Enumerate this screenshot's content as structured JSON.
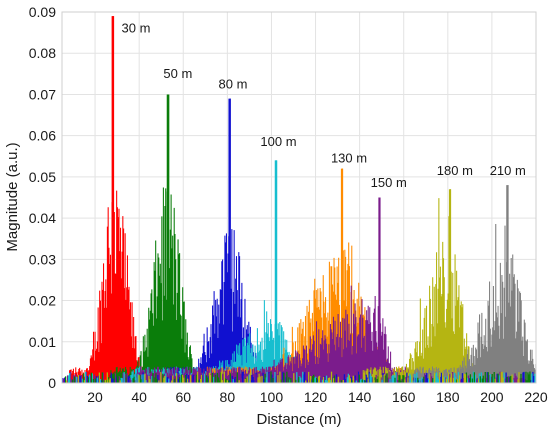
{
  "chart_data": {
    "type": "area",
    "title": "",
    "xlabel": "Distance (m)",
    "ylabel": "Magnitude (a.u.)",
    "xlim": [
      5,
      220
    ],
    "ylim": [
      0,
      0.09
    ],
    "x_ticks": [
      20,
      40,
      60,
      80,
      100,
      120,
      140,
      160,
      180,
      200,
      220
    ],
    "x_tick_labels": [
      "20",
      "40",
      "60",
      "80",
      "100",
      "120",
      "140",
      "160",
      "180",
      "200",
      "220"
    ],
    "y_ticks": [
      0,
      0.01,
      0.02,
      0.03,
      0.04,
      0.05,
      0.06,
      0.07,
      0.08,
      0.09
    ],
    "y_tick_labels": [
      "0",
      "0.01",
      "0.02",
      "0.03",
      "0.04",
      "0.05",
      "0.06",
      "0.07",
      "0.08",
      "0.09"
    ],
    "grid": true,
    "series": [
      {
        "label": "30 m",
        "color": "#ff0000",
        "peak_x": 28,
        "peak_y": 0.089,
        "bulk_height": 0.05,
        "spread_left": 9,
        "spread_right": 11
      },
      {
        "label": "50 m",
        "color": "#0a7d0a",
        "peak_x": 53,
        "peak_y": 0.07,
        "bulk_height": 0.046,
        "spread_left": 12,
        "spread_right": 10
      },
      {
        "label": "80 m",
        "color": "#1010d0",
        "peak_x": 81,
        "peak_y": 0.069,
        "bulk_height": 0.036,
        "spread_left": 13,
        "spread_right": 12
      },
      {
        "label": "100 m",
        "color": "#17becf",
        "peak_x": 102,
        "peak_y": 0.054,
        "bulk_height": 0.015,
        "spread_left": 30,
        "spread_right": 10
      },
      {
        "label": "130 m",
        "color": "#ff8c00",
        "peak_x": 132,
        "peak_y": 0.052,
        "bulk_height": 0.03,
        "spread_left": 28,
        "spread_right": 18
      },
      {
        "label": "150 m",
        "color": "#7b1c8c",
        "peak_x": 149,
        "peak_y": 0.045,
        "bulk_height": 0.02,
        "spread_left": 50,
        "spread_right": 6
      },
      {
        "label": "180 m",
        "color": "#b5b512",
        "peak_x": 181,
        "peak_y": 0.047,
        "bulk_height": 0.036,
        "spread_left": 18,
        "spread_right": 9
      },
      {
        "label": "210 m",
        "color": "#808080",
        "peak_x": 207,
        "peak_y": 0.048,
        "bulk_height": 0.03,
        "spread_left": 20,
        "spread_right": 12
      }
    ],
    "annotations": [
      {
        "text": "30 m",
        "x": 32,
        "y": 0.085
      },
      {
        "text": "50 m",
        "x": 51,
        "y": 0.074
      },
      {
        "text": "80 m",
        "x": 76,
        "y": 0.0715
      },
      {
        "text": "100 m",
        "x": 95,
        "y": 0.0575
      },
      {
        "text": "130 m",
        "x": 127,
        "y": 0.0535
      },
      {
        "text": "150 m",
        "x": 145,
        "y": 0.0475
      },
      {
        "text": "180 m",
        "x": 175,
        "y": 0.0505
      },
      {
        "text": "210 m",
        "x": 199,
        "y": 0.0505
      }
    ]
  }
}
